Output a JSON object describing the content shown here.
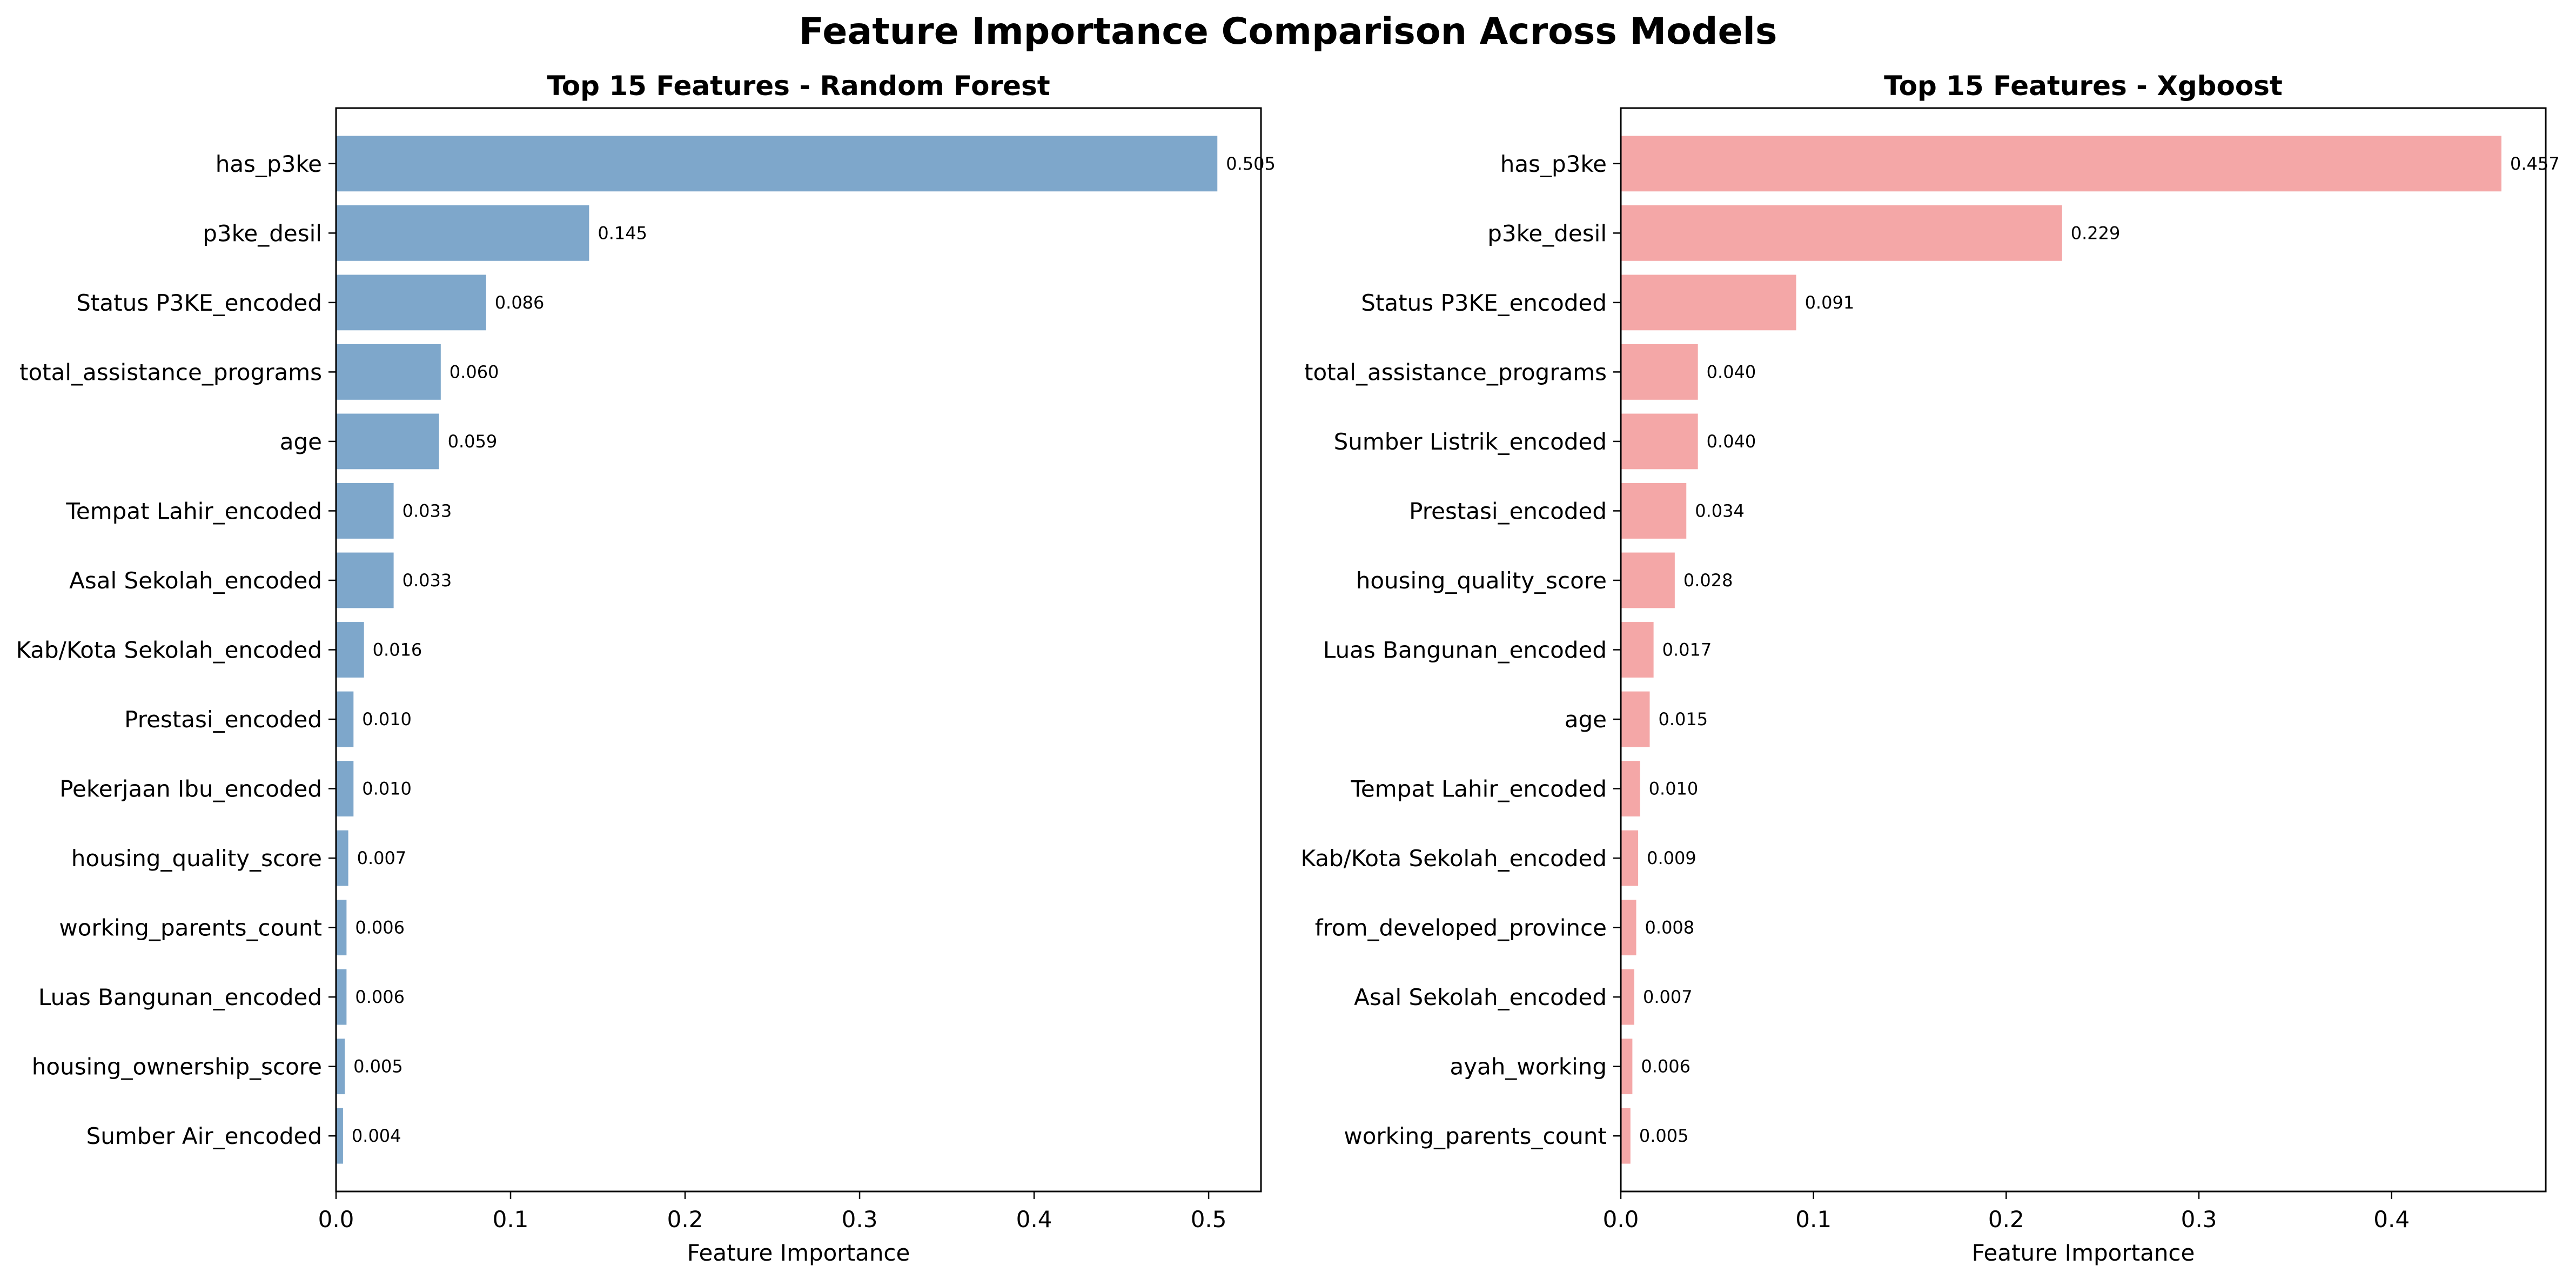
{
  "suptitle": "Feature Importance Comparison Across Models",
  "chart_data": [
    {
      "type": "bar",
      "orientation": "horizontal",
      "title": "Top 15 Features - Random Forest",
      "xlabel": "Feature Importance",
      "ylabel": "",
      "xlim": [
        0,
        0.53
      ],
      "xticks": [
        "0.0",
        "0.1",
        "0.2",
        "0.3",
        "0.4",
        "0.5"
      ],
      "grid": false,
      "color": "#7ea7cb",
      "categories": [
        "has_p3ke",
        "p3ke_desil",
        "Status P3KE_encoded",
        "total_assistance_programs",
        "age",
        "Tempat Lahir_encoded",
        "Asal Sekolah_encoded",
        "Kab/Kota Sekolah_encoded",
        "Prestasi_encoded",
        "Pekerjaan Ibu_encoded",
        "housing_quality_score",
        "working_parents_count",
        "Luas Bangunan_encoded",
        "housing_ownership_score",
        "Sumber Air_encoded"
      ],
      "values": [
        0.505,
        0.145,
        0.086,
        0.06,
        0.059,
        0.033,
        0.033,
        0.016,
        0.01,
        0.01,
        0.007,
        0.006,
        0.006,
        0.005,
        0.004
      ],
      "value_labels": [
        "0.505",
        "0.145",
        "0.086",
        "0.060",
        "0.059",
        "0.033",
        "0.033",
        "0.016",
        "0.010",
        "0.010",
        "0.007",
        "0.006",
        "0.006",
        "0.005",
        "0.004"
      ]
    },
    {
      "type": "bar",
      "orientation": "horizontal",
      "title": "Top 15 Features - Xgboost",
      "xlabel": "Feature Importance",
      "ylabel": "",
      "xlim": [
        0,
        0.48
      ],
      "xticks": [
        "0.0",
        "0.1",
        "0.2",
        "0.3",
        "0.4"
      ],
      "grid": false,
      "color": "#f4a7a7",
      "categories": [
        "has_p3ke",
        "p3ke_desil",
        "Status P3KE_encoded",
        "total_assistance_programs",
        "Sumber Listrik_encoded",
        "Prestasi_encoded",
        "housing_quality_score",
        "Luas Bangunan_encoded",
        "age",
        "Tempat Lahir_encoded",
        "Kab/Kota Sekolah_encoded",
        "from_developed_province",
        "Asal Sekolah_encoded",
        "ayah_working",
        "working_parents_count"
      ],
      "values": [
        0.457,
        0.229,
        0.091,
        0.04,
        0.04,
        0.034,
        0.028,
        0.017,
        0.015,
        0.01,
        0.009,
        0.008,
        0.007,
        0.006,
        0.005
      ],
      "value_labels": [
        "0.457",
        "0.229",
        "0.091",
        "0.040",
        "0.040",
        "0.034",
        "0.028",
        "0.017",
        "0.015",
        "0.010",
        "0.009",
        "0.008",
        "0.007",
        "0.006",
        "0.005"
      ]
    }
  ]
}
